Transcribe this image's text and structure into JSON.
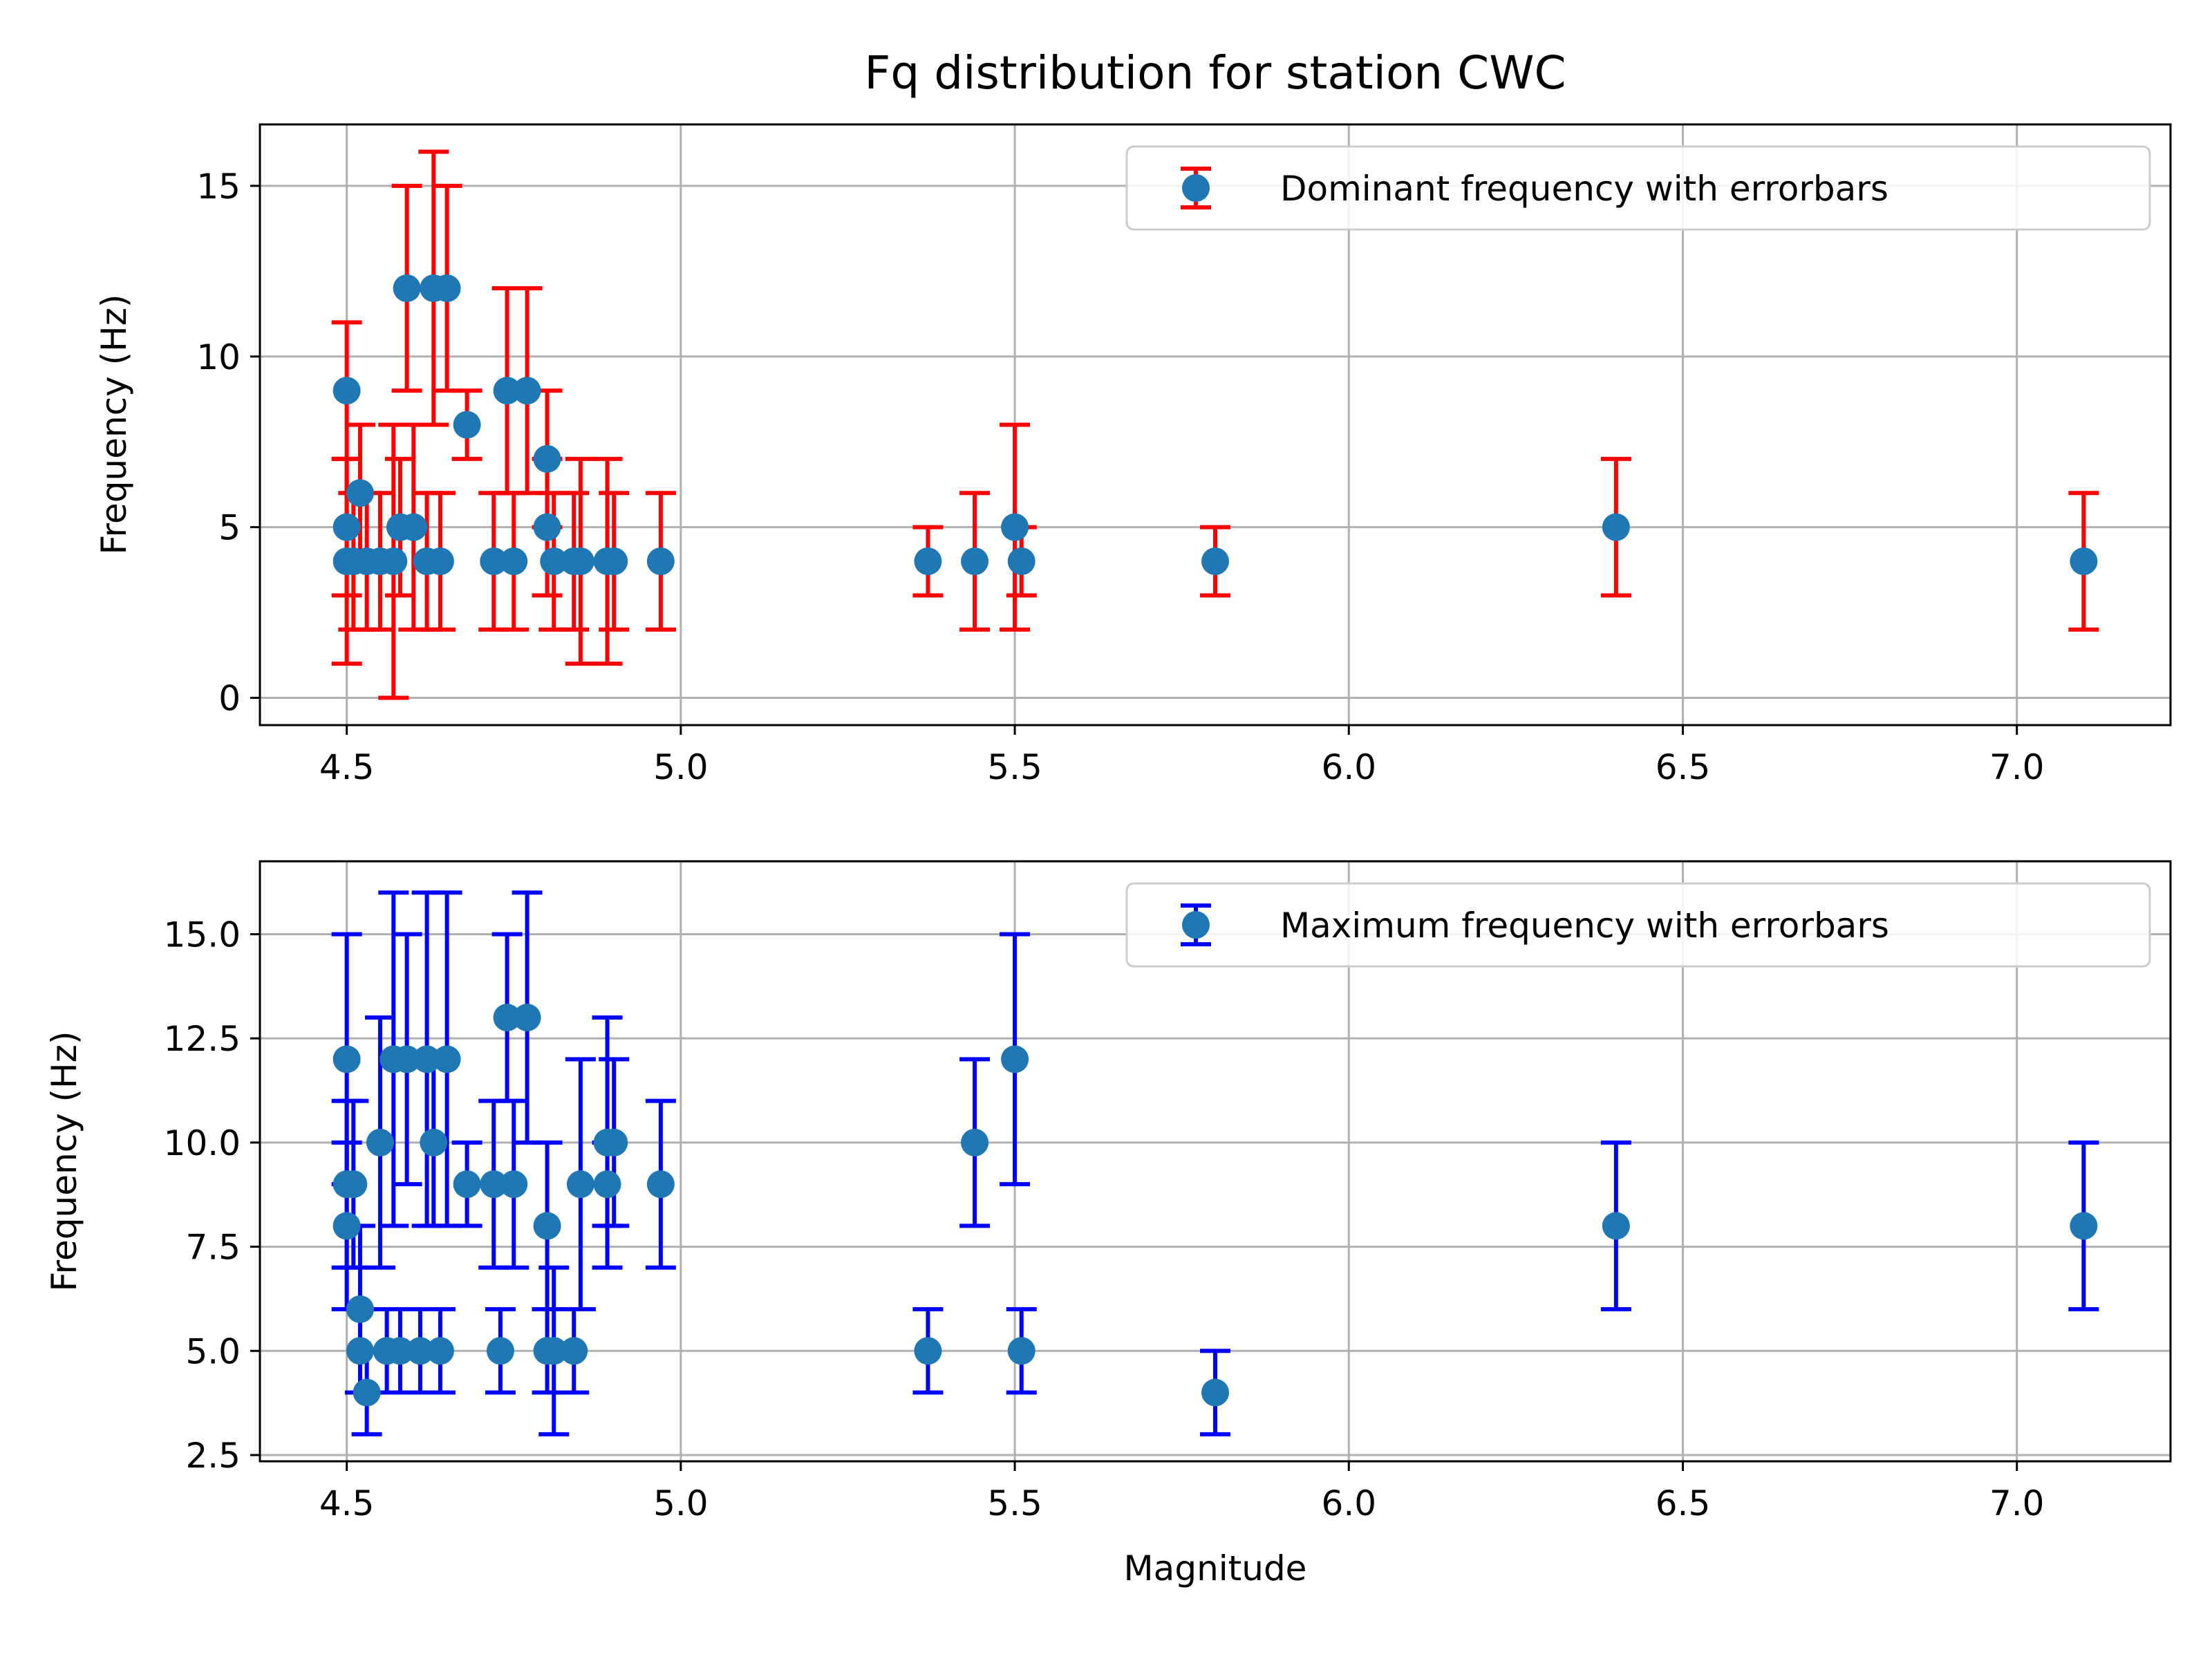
{
  "colors": {
    "point": "#1f77b4",
    "dominant_errorbar": "#ff0000",
    "maximum_errorbar": "#0000ff",
    "grid": "#b0b0b0",
    "axes": "#000000",
    "legend_border": "#cccccc"
  },
  "chart_data": [
    {
      "type": "scatter",
      "title": "Fq distribution for station CWC",
      "xlabel": "",
      "ylabel": "Frequency (Hz)",
      "xlim": [
        4.37,
        7.23
      ],
      "ylim": [
        -0.8,
        16.8
      ],
      "xticks": [
        4.5,
        5.0,
        5.5,
        6.0,
        6.5,
        7.0
      ],
      "xtick_labels": [
        "4.5",
        "5.0",
        "5.5",
        "6.0",
        "6.5",
        "7.0"
      ],
      "yticks": [
        0,
        5,
        10,
        15
      ],
      "ytick_labels": [
        "0",
        "5",
        "10",
        "15"
      ],
      "grid": true,
      "legend_position": "top-right",
      "series": [
        {
          "name": "Dominant frequency with errorbars",
          "errorbar_color": "#ff0000",
          "points": [
            {
              "x": 4.5,
              "y": 9,
              "lo": 7,
              "hi": 11
            },
            {
              "x": 4.5,
              "y": 5,
              "lo": 3,
              "hi": 7
            },
            {
              "x": 4.5,
              "y": 4,
              "lo": 1,
              "hi": 7
            },
            {
              "x": 4.51,
              "y": 4,
              "lo": 2,
              "hi": 6
            },
            {
              "x": 4.52,
              "y": 6,
              "lo": 4,
              "hi": 8
            },
            {
              "x": 4.53,
              "y": 4,
              "lo": 2,
              "hi": 6
            },
            {
              "x": 4.55,
              "y": 4,
              "lo": 2,
              "hi": 6
            },
            {
              "x": 4.57,
              "y": 4,
              "lo": 0,
              "hi": 8
            },
            {
              "x": 4.58,
              "y": 5,
              "lo": 3,
              "hi": 7
            },
            {
              "x": 4.59,
              "y": 12,
              "lo": 9,
              "hi": 15
            },
            {
              "x": 4.6,
              "y": 5,
              "lo": 2,
              "hi": 8
            },
            {
              "x": 4.62,
              "y": 4,
              "lo": 2,
              "hi": 6
            },
            {
              "x": 4.63,
              "y": 12,
              "lo": 8,
              "hi": 16
            },
            {
              "x": 4.64,
              "y": 4,
              "lo": 2,
              "hi": 6
            },
            {
              "x": 4.65,
              "y": 12,
              "lo": 9,
              "hi": 15
            },
            {
              "x": 4.68,
              "y": 8,
              "lo": 7,
              "hi": 9
            },
            {
              "x": 4.72,
              "y": 4,
              "lo": 2,
              "hi": 6
            },
            {
              "x": 4.74,
              "y": 9,
              "lo": 6,
              "hi": 12
            },
            {
              "x": 4.75,
              "y": 4,
              "lo": 2,
              "hi": 6
            },
            {
              "x": 4.77,
              "y": 9,
              "lo": 6,
              "hi": 12
            },
            {
              "x": 4.8,
              "y": 7,
              "lo": 5,
              "hi": 9
            },
            {
              "x": 4.8,
              "y": 5,
              "lo": 3,
              "hi": 7
            },
            {
              "x": 4.81,
              "y": 4,
              "lo": 2,
              "hi": 6
            },
            {
              "x": 4.84,
              "y": 4,
              "lo": 2,
              "hi": 6
            },
            {
              "x": 4.85,
              "y": 4,
              "lo": 1,
              "hi": 7
            },
            {
              "x": 4.89,
              "y": 4,
              "lo": 1,
              "hi": 7
            },
            {
              "x": 4.9,
              "y": 4,
              "lo": 2,
              "hi": 6
            },
            {
              "x": 4.97,
              "y": 4,
              "lo": 2,
              "hi": 6
            },
            {
              "x": 5.37,
              "y": 4,
              "lo": 3,
              "hi": 5
            },
            {
              "x": 5.44,
              "y": 4,
              "lo": 2,
              "hi": 6
            },
            {
              "x": 5.5,
              "y": 5,
              "lo": 2,
              "hi": 8
            },
            {
              "x": 5.51,
              "y": 4,
              "lo": 3,
              "hi": 5
            },
            {
              "x": 5.8,
              "y": 4,
              "lo": 3,
              "hi": 5
            },
            {
              "x": 6.4,
              "y": 5,
              "lo": 3,
              "hi": 7
            },
            {
              "x": 7.1,
              "y": 4,
              "lo": 2,
              "hi": 6
            }
          ]
        }
      ]
    },
    {
      "type": "scatter",
      "title": "",
      "xlabel": "Magnitude",
      "ylabel": "Frequency (Hz)",
      "xlim": [
        4.37,
        7.23
      ],
      "ylim": [
        2.35,
        16.75
      ],
      "xticks": [
        4.5,
        5.0,
        5.5,
        6.0,
        6.5,
        7.0
      ],
      "xtick_labels": [
        "4.5",
        "5.0",
        "5.5",
        "6.0",
        "6.5",
        "7.0"
      ],
      "yticks": [
        2.5,
        5.0,
        7.5,
        10.0,
        12.5,
        15.0
      ],
      "ytick_labels": [
        "2.5",
        "5.0",
        "7.5",
        "10.0",
        "12.5",
        "15.0"
      ],
      "grid": true,
      "legend_position": "top-right",
      "series": [
        {
          "name": "Maximum frequency with errorbars",
          "errorbar_color": "#0000ff",
          "points": [
            {
              "x": 4.5,
              "y": 12,
              "lo": 9,
              "hi": 15
            },
            {
              "x": 4.5,
              "y": 9,
              "lo": 7,
              "hi": 11
            },
            {
              "x": 4.5,
              "y": 8,
              "lo": 6,
              "hi": 10
            },
            {
              "x": 4.51,
              "y": 9,
              "lo": 7,
              "hi": 11
            },
            {
              "x": 4.52,
              "y": 6,
              "lo": 4,
              "hi": 8
            },
            {
              "x": 4.52,
              "y": 5,
              "lo": 4,
              "hi": 6
            },
            {
              "x": 4.53,
              "y": 4,
              "lo": 3,
              "hi": 5
            },
            {
              "x": 4.55,
              "y": 10,
              "lo": 7,
              "hi": 13
            },
            {
              "x": 4.56,
              "y": 5,
              "lo": 4,
              "hi": 6
            },
            {
              "x": 4.57,
              "y": 12,
              "lo": 8,
              "hi": 16
            },
            {
              "x": 4.58,
              "y": 5,
              "lo": 4,
              "hi": 6
            },
            {
              "x": 4.59,
              "y": 12,
              "lo": 9,
              "hi": 15
            },
            {
              "x": 4.61,
              "y": 5,
              "lo": 4,
              "hi": 6
            },
            {
              "x": 4.62,
              "y": 12,
              "lo": 8,
              "hi": 16
            },
            {
              "x": 4.63,
              "y": 10,
              "lo": 8,
              "hi": 12
            },
            {
              "x": 4.64,
              "y": 5,
              "lo": 4,
              "hi": 6
            },
            {
              "x": 4.65,
              "y": 12,
              "lo": 8,
              "hi": 16
            },
            {
              "x": 4.68,
              "y": 9,
              "lo": 8,
              "hi": 10
            },
            {
              "x": 4.72,
              "y": 9,
              "lo": 7,
              "hi": 11
            },
            {
              "x": 4.73,
              "y": 5,
              "lo": 4,
              "hi": 6
            },
            {
              "x": 4.74,
              "y": 13,
              "lo": 11,
              "hi": 15
            },
            {
              "x": 4.75,
              "y": 9,
              "lo": 7,
              "hi": 11
            },
            {
              "x": 4.77,
              "y": 13,
              "lo": 10,
              "hi": 16
            },
            {
              "x": 4.8,
              "y": 8,
              "lo": 6,
              "hi": 10
            },
            {
              "x": 4.8,
              "y": 5,
              "lo": 4,
              "hi": 6
            },
            {
              "x": 4.81,
              "y": 5,
              "lo": 3,
              "hi": 7
            },
            {
              "x": 4.84,
              "y": 5,
              "lo": 4,
              "hi": 6
            },
            {
              "x": 4.85,
              "y": 9,
              "lo": 6,
              "hi": 12
            },
            {
              "x": 4.89,
              "y": 10,
              "lo": 7,
              "hi": 13
            },
            {
              "x": 4.89,
              "y": 9,
              "lo": 8,
              "hi": 10
            },
            {
              "x": 4.9,
              "y": 10,
              "lo": 8,
              "hi": 12
            },
            {
              "x": 4.97,
              "y": 9,
              "lo": 7,
              "hi": 11
            },
            {
              "x": 5.37,
              "y": 5,
              "lo": 4,
              "hi": 6
            },
            {
              "x": 5.44,
              "y": 10,
              "lo": 8,
              "hi": 12
            },
            {
              "x": 5.5,
              "y": 12,
              "lo": 9,
              "hi": 15
            },
            {
              "x": 5.51,
              "y": 5,
              "lo": 4,
              "hi": 6
            },
            {
              "x": 5.8,
              "y": 4,
              "lo": 3,
              "hi": 5
            },
            {
              "x": 6.4,
              "y": 8,
              "lo": 6,
              "hi": 10
            },
            {
              "x": 7.1,
              "y": 8,
              "lo": 6,
              "hi": 10
            }
          ]
        }
      ]
    }
  ]
}
